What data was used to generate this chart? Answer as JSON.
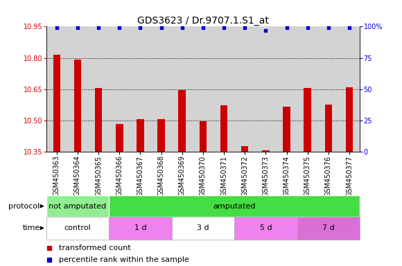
{
  "title": "GDS3623 / Dr.9707.1.S1_at",
  "categories": [
    "GSM450363",
    "GSM450364",
    "GSM450365",
    "GSM450366",
    "GSM450367",
    "GSM450368",
    "GSM450369",
    "GSM450370",
    "GSM450371",
    "GSM450372",
    "GSM450373",
    "GSM450374",
    "GSM450375",
    "GSM450376",
    "GSM450377"
  ],
  "bar_values": [
    10.815,
    10.793,
    10.655,
    10.483,
    10.505,
    10.505,
    10.645,
    10.495,
    10.573,
    10.375,
    10.355,
    10.565,
    10.655,
    10.575,
    10.66
  ],
  "percentile_values": [
    99,
    99,
    99,
    99,
    99,
    99,
    99,
    99,
    99,
    99,
    97,
    99,
    99,
    99,
    99
  ],
  "ylim_left": [
    10.35,
    10.95
  ],
  "ylim_right": [
    0,
    100
  ],
  "yticks_left": [
    10.35,
    10.5,
    10.65,
    10.8,
    10.95
  ],
  "yticks_right": [
    0,
    25,
    50,
    75,
    100
  ],
  "bar_color": "#cc0000",
  "dot_color": "#0000cc",
  "bg_color": "#d3d3d3",
  "protocol_groups": [
    {
      "label": "not amputated",
      "start": 0,
      "end": 3,
      "color": "#90ee90"
    },
    {
      "label": "amputated",
      "start": 3,
      "end": 15,
      "color": "#44dd44"
    }
  ],
  "time_groups": [
    {
      "label": "control",
      "start": 0,
      "end": 3,
      "color": "#ffffff"
    },
    {
      "label": "1 d",
      "start": 3,
      "end": 6,
      "color": "#ee82ee"
    },
    {
      "label": "3 d",
      "start": 6,
      "end": 9,
      "color": "#ffffff"
    },
    {
      "label": "5 d",
      "start": 9,
      "end": 12,
      "color": "#ee82ee"
    },
    {
      "label": "7 d",
      "start": 12,
      "end": 15,
      "color": "#da70d6"
    }
  ],
  "legend_items": [
    {
      "label": "transformed count",
      "color": "#cc0000"
    },
    {
      "label": "percentile rank within the sample",
      "color": "#0000cc"
    }
  ],
  "title_fontsize": 10,
  "tick_fontsize": 7,
  "label_fontsize": 8,
  "annot_fontsize": 8
}
